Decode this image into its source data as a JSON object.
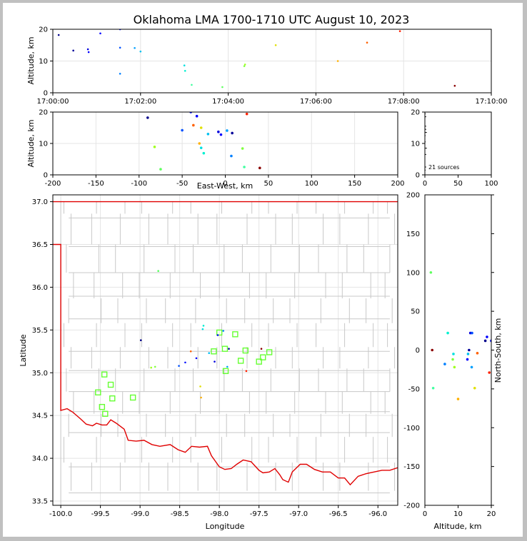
{
  "chart_data": [
    {
      "id": "time-height",
      "type": "scatter",
      "title": "Oklahoma LMA 1700-1710 UTC August 10, 2023",
      "ylabel": "Altitude, km",
      "xlim": [
        "17:00:00",
        "17:10:00"
      ],
      "ylim": [
        0,
        20
      ],
      "xticks": [
        "17:00:00",
        "17:02:00",
        "17:04:00",
        "17:06:00",
        "17:08:00",
        "17:10:00"
      ],
      "yticks": [
        0,
        10,
        20
      ],
      "grid": true
    },
    {
      "id": "ew-height",
      "type": "scatter",
      "xlabel": "East-West, km",
      "ylabel": "Altitude, km",
      "xlim": [
        -200,
        200
      ],
      "ylim": [
        0,
        20
      ],
      "xticks": [
        -200,
        -150,
        -100,
        -50,
        0,
        50,
        100,
        150,
        200
      ],
      "yticks": [
        0,
        10,
        20
      ],
      "grid": true
    },
    {
      "id": "histogram",
      "type": "scatter",
      "xlim": [
        0,
        100
      ],
      "ylim": [
        0,
        20
      ],
      "xticks": [
        0,
        50,
        100
      ],
      "yticks": [
        0,
        10,
        20
      ],
      "annotation": "21 sources"
    },
    {
      "id": "plan-view",
      "type": "scatter",
      "xlabel": "Longitude",
      "ylabel": "Latitude",
      "xlim": [
        -100.1,
        -95.75
      ],
      "ylim": [
        33.45,
        37.08
      ],
      "xticks": [
        -100.0,
        -99.5,
        -99.0,
        -98.5,
        -98.0,
        -97.5,
        -97.0,
        -96.5,
        -96.0
      ],
      "yticks": [
        33.5,
        34.0,
        34.5,
        35.0,
        35.5,
        36.0,
        36.5,
        37.0
      ],
      "grid": true,
      "stations": [
        [
          -99.45,
          34.98
        ],
        [
          -99.37,
          34.86
        ],
        [
          -99.53,
          34.77
        ],
        [
          -99.35,
          34.7
        ],
        [
          -99.48,
          34.6
        ],
        [
          -99.44,
          34.52
        ],
        [
          -99.09,
          34.71
        ],
        [
          -98.0,
          35.47
        ],
        [
          -98.07,
          35.25
        ],
        [
          -97.93,
          35.28
        ],
        [
          -97.8,
          35.45
        ],
        [
          -97.67,
          35.26
        ],
        [
          -97.73,
          35.14
        ],
        [
          -97.92,
          35.02
        ],
        [
          -97.5,
          35.13
        ],
        [
          -97.45,
          35.18
        ],
        [
          -97.37,
          35.24
        ]
      ]
    },
    {
      "id": "ns-height",
      "type": "scatter",
      "xlabel": "Altitude, km",
      "ylabel": "North-South, km",
      "xlim": [
        0,
        20
      ],
      "ylim": [
        -200,
        200
      ],
      "xticks": [
        0,
        10,
        20
      ],
      "yticks": [
        -200,
        -150,
        -100,
        -50,
        0,
        50,
        100,
        150,
        200
      ]
    }
  ],
  "sources": [
    {
      "t": 8,
      "alt": 18.2,
      "ew": -90,
      "ns": 12,
      "lon": -98.99,
      "lat": 35.38,
      "color": "#00008b"
    },
    {
      "t": 28,
      "alt": 13.3,
      "ew": 8,
      "ns": 0,
      "lon": -97.88,
      "lat": 35.28,
      "color": "#000099"
    },
    {
      "t": 48,
      "alt": 13.7,
      "ew": -8,
      "ns": 22,
      "lon": -98.06,
      "lat": 35.13,
      "color": "#0000dd"
    },
    {
      "t": 49,
      "alt": 12.8,
      "ew": -5,
      "ns": -12,
      "lon": -98.02,
      "lat": 35.44,
      "color": "#0000ff"
    },
    {
      "t": 65,
      "alt": 18.7,
      "ew": -33,
      "ns": 17,
      "lon": -98.29,
      "lat": 35.17,
      "color": "#0000ff"
    },
    {
      "t": 92,
      "alt": 20.0,
      "ew": -40,
      "ns": 12,
      "lon": -98.43,
      "lat": 35.12,
      "color": "#0010ff"
    },
    {
      "t": 92,
      "alt": 14.2,
      "ew": -50,
      "ns": 22,
      "lon": -98.51,
      "lat": 35.08,
      "color": "#0050ff"
    },
    {
      "t": 92,
      "alt": 6.0,
      "ew": 7,
      "ns": -18,
      "lon": -97.95,
      "lat": 35.49,
      "color": "#0080ff"
    },
    {
      "t": 112,
      "alt": 14.1,
      "ew": 2,
      "ns": -22,
      "lon": -97.9,
      "lat": 35.07,
      "color": "#00a0ff"
    },
    {
      "t": 120,
      "alt": 13.0,
      "ew": -20,
      "ns": -5,
      "lon": -98.13,
      "lat": 35.23,
      "color": "#00c0f0"
    },
    {
      "t": 180,
      "alt": 8.6,
      "ew": -28,
      "ns": -5,
      "lon": -98.21,
      "lat": 35.51,
      "color": "#00e0e0"
    },
    {
      "t": 181,
      "alt": 6.9,
      "ew": -25,
      "ns": 22,
      "lon": -98.2,
      "lat": 35.55,
      "color": "#00f0d0"
    },
    {
      "t": 190,
      "alt": 2.5,
      "ew": 22,
      "ns": -49,
      "lon": -98.77,
      "lat": 36.19,
      "color": "#40ffa0"
    },
    {
      "t": 232,
      "alt": 1.8,
      "ew": -75,
      "ns": 100,
      "lon": -98.77,
      "lat": 36.19,
      "color": "#60ff60"
    },
    {
      "t": 262,
      "alt": 8.4,
      "ew": 20,
      "ns": -12,
      "lon": -98.81,
      "lat": 35.07,
      "color": "#80ff40"
    },
    {
      "t": 263,
      "alt": 8.9,
      "ew": -82,
      "ns": -22,
      "lon": -98.86,
      "lat": 35.06,
      "color": "#a0ff20"
    },
    {
      "t": 305,
      "alt": 15.0,
      "ew": -28,
      "ns": -49,
      "lon": -98.24,
      "lat": 34.84,
      "color": "#e0e000"
    },
    {
      "t": 390,
      "alt": 10.0,
      "ew": -30,
      "ns": -63,
      "lon": -98.23,
      "lat": 34.71,
      "color": "#ffb000"
    },
    {
      "t": 430,
      "alt": 15.8,
      "ew": -37,
      "ns": -4,
      "lon": -98.36,
      "lat": 35.25,
      "color": "#ff6000"
    },
    {
      "t": 475,
      "alt": 19.4,
      "ew": 25,
      "ns": -29,
      "lon": -97.66,
      "lat": 35.02,
      "color": "#ff2000"
    },
    {
      "t": 550,
      "alt": 2.2,
      "ew": 40,
      "ns": 0,
      "lon": -97.47,
      "lat": 35.28,
      "color": "#8b0000"
    }
  ],
  "states_border_color": "#e00000",
  "county_color": "#c8c8c8"
}
